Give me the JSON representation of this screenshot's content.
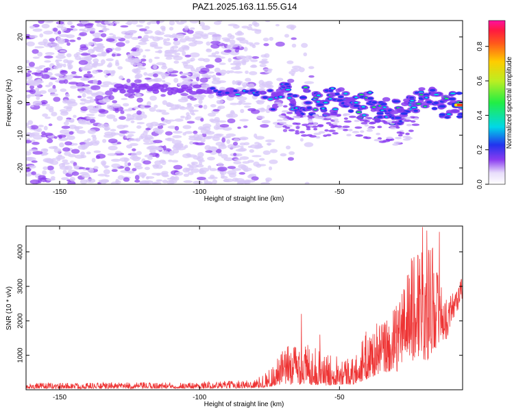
{
  "title": "PAZ1.2025.163.11.55.G14",
  "colors": {
    "signal": "#ee3333",
    "blob_low": "#d8c8f8",
    "blob_mid": "#8a3cf0",
    "blob_core": "#2233ee",
    "blob_peak": "#00e0e0",
    "blob_hot": "#22ee55",
    "frame": "#000000"
  },
  "chart_data": [
    {
      "type": "heatmap",
      "title": "PAZ1.2025.163.11.55.G14",
      "xlabel": "Height of straight line (km)",
      "ylabel": "Frequency (Hz)",
      "xlim": [
        -162,
        -6
      ],
      "ylim": [
        -25,
        25
      ],
      "xticks": [
        -150,
        -100,
        -50
      ],
      "xtick_labels": [
        "-150",
        "-100",
        "-50"
      ],
      "yticks": [
        20,
        10,
        0,
        -10,
        -20
      ],
      "ytick_labels": [
        "20",
        "10",
        "0",
        "-10",
        "-20"
      ],
      "colorbar": {
        "label": "Normalized spectral amplitude",
        "range": [
          0,
          0.95
        ],
        "ticks": [
          0.0,
          0.2,
          0.4,
          0.6,
          0.8
        ],
        "tick_labels": [
          "0.0",
          "0.2",
          "0.4",
          "0.6",
          "0.8"
        ],
        "colormap": "rainbow (white-violet-blue-cyan-green-yellow-red-magenta)"
      },
      "features": {
        "noise_floor_x_range": [
          -162,
          -75
        ],
        "tone_track": {
          "description": "main spectral line",
          "points": [
            {
              "x": -130,
              "y": 4.5,
              "amp": 0.05
            },
            {
              "x": -110,
              "y": 4.2,
              "amp": 0.08
            },
            {
              "x": -95,
              "y": 3.5,
              "amp": 0.15
            },
            {
              "x": -80,
              "y": 3.0,
              "amp": 0.2
            },
            {
              "x": -70,
              "y": 2.0,
              "amp": 0.25
            },
            {
              "x": -60,
              "y": -1.0,
              "amp": 0.3
            },
            {
              "x": -50,
              "y": 0.0,
              "amp": 0.3
            },
            {
              "x": -40,
              "y": -1.0,
              "amp": 0.3
            },
            {
              "x": -30,
              "y": -3.0,
              "amp": 0.3
            },
            {
              "x": -20,
              "y": 0.5,
              "amp": 0.35
            },
            {
              "x": -10,
              "y": 0.0,
              "amp": 0.45
            },
            {
              "x": -6,
              "y": -0.8,
              "amp": 0.95
            }
          ]
        }
      }
    },
    {
      "type": "line",
      "xlabel": "Height of straight line (km)",
      "ylabel": "SNR (10 * v/v)",
      "xlim": [
        -162,
        -6
      ],
      "ylim": [
        0,
        4750
      ],
      "xticks": [
        -150,
        -100,
        -50
      ],
      "xtick_labels": [
        "-150",
        "-100",
        "-50"
      ],
      "yticks": [
        1000,
        2000,
        3000,
        4000
      ],
      "ytick_labels": [
        "1000",
        "2000",
        "3000",
        "4000"
      ],
      "grid": false,
      "series": [
        {
          "color": "#ee3333",
          "envelope": [
            {
              "x": -162,
              "low": 30,
              "high": 200
            },
            {
              "x": -100,
              "low": 40,
              "high": 220
            },
            {
              "x": -80,
              "low": 50,
              "high": 300
            },
            {
              "x": -75,
              "low": 80,
              "high": 600
            },
            {
              "x": -70,
              "low": 150,
              "high": 1200
            },
            {
              "x": -65,
              "low": 150,
              "high": 1500
            },
            {
              "x": -60,
              "low": 150,
              "high": 1300
            },
            {
              "x": -55,
              "low": 120,
              "high": 1000
            },
            {
              "x": -50,
              "low": 150,
              "high": 1100
            },
            {
              "x": -45,
              "low": 150,
              "high": 900
            },
            {
              "x": -40,
              "low": 300,
              "high": 1800
            },
            {
              "x": -35,
              "low": 500,
              "high": 2000
            },
            {
              "x": -30,
              "low": 500,
              "high": 2400
            },
            {
              "x": -25,
              "low": 800,
              "high": 3700
            },
            {
              "x": -20,
              "low": 800,
              "high": 4700
            },
            {
              "x": -17,
              "low": 900,
              "high": 4500
            },
            {
              "x": -15,
              "low": 1300,
              "high": 3500
            },
            {
              "x": -12,
              "low": 1400,
              "high": 2600
            },
            {
              "x": -10,
              "low": 1900,
              "high": 2800
            },
            {
              "x": -6,
              "low": 2600,
              "high": 3300
            }
          ],
          "peaks": [
            {
              "x": -63.6,
              "y": 2200
            },
            {
              "x": -57,
              "y": 1600
            },
            {
              "x": -24,
              "y": 3750
            },
            {
              "x": -20.3,
              "y": 4720
            },
            {
              "x": -14.3,
              "y": 4580
            },
            {
              "x": -6,
              "y": 3200
            }
          ]
        }
      ]
    }
  ]
}
